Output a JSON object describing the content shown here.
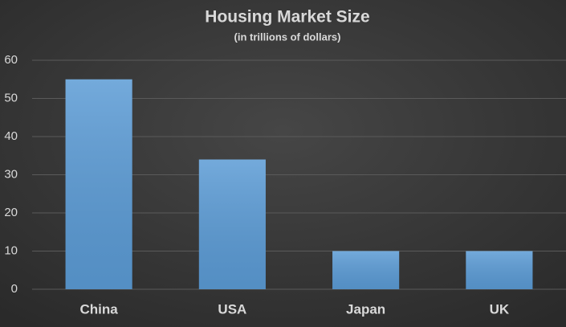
{
  "chart_data": {
    "type": "bar",
    "title": "Housing Market Size",
    "subtitle": "(in trillions of dollars)",
    "categories": [
      "China",
      "USA",
      "Japan",
      "UK"
    ],
    "values": [
      55,
      34,
      10,
      10
    ],
    "color": "#5b9bd5",
    "ylim": [
      0,
      60
    ],
    "yticks": [
      0,
      10,
      20,
      30,
      40,
      50,
      60
    ],
    "grid": true
  }
}
